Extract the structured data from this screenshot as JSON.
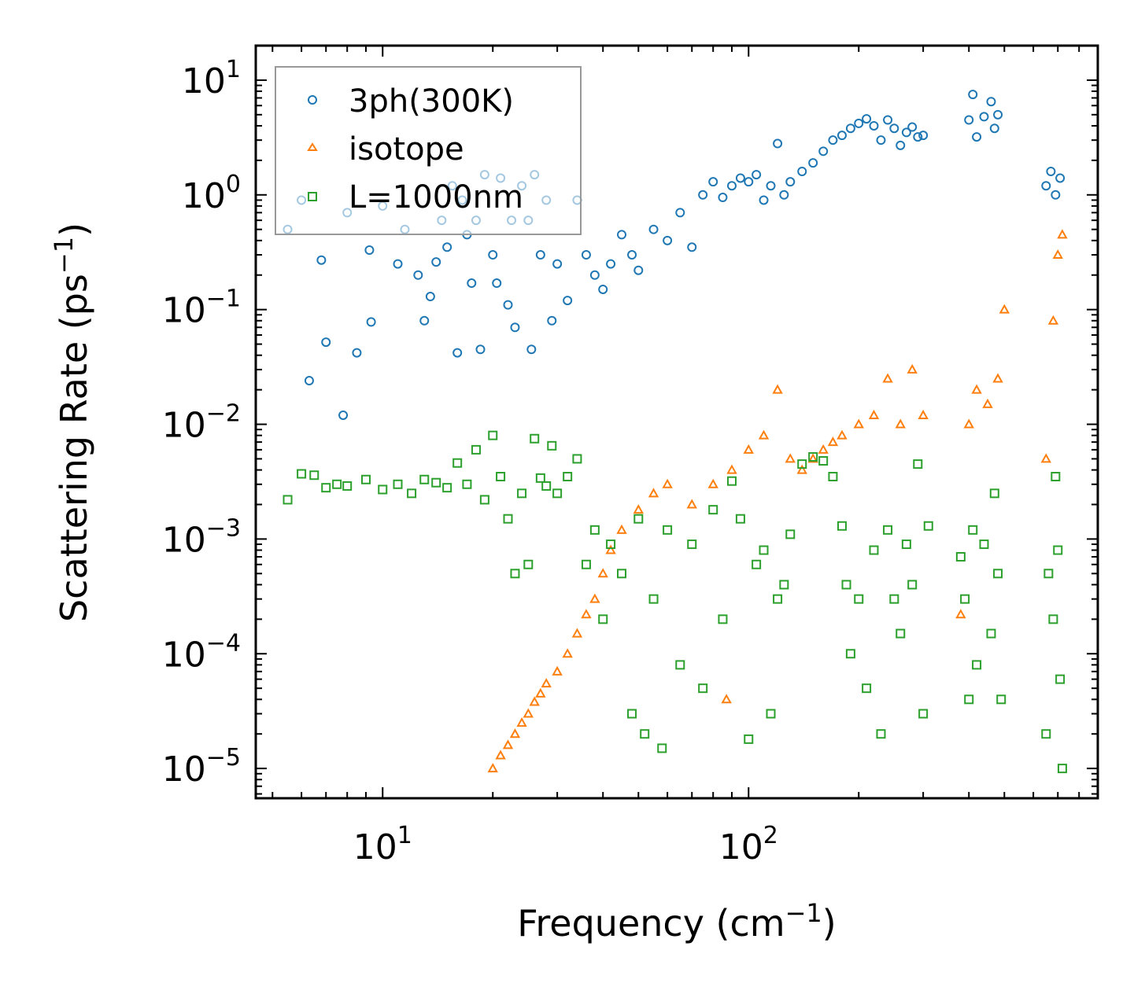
{
  "chart_data": {
    "type": "scatter",
    "xscale": "log",
    "yscale": "log",
    "xlim": [
      4.5,
      900
    ],
    "ylim": [
      5.5e-06,
      20
    ],
    "xlabel": "Frequency (cm",
    "xlabel_sup": "−1",
    "xlabel_end": ")",
    "ylabel": "Scattering Rate (ps",
    "ylabel_sup": "−1",
    "ylabel_end": ")",
    "x_ticks": [
      {
        "value": 10,
        "base": "10",
        "exp": "1"
      },
      {
        "value": 100,
        "base": "10",
        "exp": "2"
      }
    ],
    "y_ticks": [
      {
        "value": 10,
        "base": "10",
        "exp": "1"
      },
      {
        "value": 1,
        "base": "10",
        "exp": "0"
      },
      {
        "value": 0.1,
        "base": "10",
        "exp": "−1"
      },
      {
        "value": 0.01,
        "base": "10",
        "exp": "−2"
      },
      {
        "value": 0.001,
        "base": "10",
        "exp": "−3"
      },
      {
        "value": 0.0001,
        "base": "10",
        "exp": "−4"
      },
      {
        "value": 1e-05,
        "base": "10",
        "exp": "−5"
      }
    ],
    "legend_position": "top-left",
    "series": [
      {
        "name": "3ph(300K)",
        "marker": "circle",
        "color": "#1f77b4",
        "points": [
          [
            5.5,
            0.5
          ],
          [
            6,
            0.9
          ],
          [
            6.3,
            0.024
          ],
          [
            6.8,
            0.27
          ],
          [
            7,
            0.052
          ],
          [
            7.8,
            0.012
          ],
          [
            8,
            0.7
          ],
          [
            8.5,
            0.042
          ],
          [
            9.2,
            0.33
          ],
          [
            9.3,
            0.078
          ],
          [
            10,
            0.8
          ],
          [
            11,
            0.25
          ],
          [
            11.5,
            0.5
          ],
          [
            12.5,
            0.2
          ],
          [
            13,
            0.08
          ],
          [
            13.5,
            0.13
          ],
          [
            14,
            0.26
          ],
          [
            14.5,
            0.6
          ],
          [
            15,
            0.35
          ],
          [
            15.5,
            1.2
          ],
          [
            16,
            0.042
          ],
          [
            16.5,
            0.9
          ],
          [
            17,
            0.45
          ],
          [
            17.5,
            0.17
          ],
          [
            18,
            0.6
          ],
          [
            18.5,
            0.045
          ],
          [
            19,
            1.5
          ],
          [
            20,
            0.3
          ],
          [
            20.5,
            0.17
          ],
          [
            21,
            1.4
          ],
          [
            22,
            0.11
          ],
          [
            22.5,
            0.6
          ],
          [
            23,
            0.07
          ],
          [
            24,
            1.2
          ],
          [
            25,
            0.6
          ],
          [
            25.5,
            0.045
          ],
          [
            26,
            1.5
          ],
          [
            27,
            0.3
          ],
          [
            28,
            0.9
          ],
          [
            29,
            0.08
          ],
          [
            30,
            0.25
          ],
          [
            32,
            0.12
          ],
          [
            34,
            0.9
          ],
          [
            36,
            0.3
          ],
          [
            38,
            0.2
          ],
          [
            40,
            0.15
          ],
          [
            42,
            0.25
          ],
          [
            45,
            0.45
          ],
          [
            48,
            0.3
          ],
          [
            50,
            0.22
          ],
          [
            55,
            0.5
          ],
          [
            60,
            0.4
          ],
          [
            65,
            0.7
          ],
          [
            70,
            0.35
          ],
          [
            75,
            1.0
          ],
          [
            80,
            1.3
          ],
          [
            85,
            0.95
          ],
          [
            90,
            1.2
          ],
          [
            95,
            1.4
          ],
          [
            100,
            1.3
          ],
          [
            105,
            1.5
          ],
          [
            110,
            0.9
          ],
          [
            115,
            1.2
          ],
          [
            120,
            2.8
          ],
          [
            125,
            1.0
          ],
          [
            130,
            1.3
          ],
          [
            140,
            1.6
          ],
          [
            150,
            1.9
          ],
          [
            160,
            2.4
          ],
          [
            170,
            3.0
          ],
          [
            180,
            3.3
          ],
          [
            190,
            3.8
          ],
          [
            200,
            4.2
          ],
          [
            210,
            4.6
          ],
          [
            220,
            4.0
          ],
          [
            230,
            3.0
          ],
          [
            240,
            4.5
          ],
          [
            250,
            3.8
          ],
          [
            260,
            2.7
          ],
          [
            270,
            3.5
          ],
          [
            280,
            3.9
          ],
          [
            290,
            3.2
          ],
          [
            300,
            3.3
          ],
          [
            400,
            4.5
          ],
          [
            410,
            7.5
          ],
          [
            420,
            3.2
          ],
          [
            440,
            4.8
          ],
          [
            460,
            6.5
          ],
          [
            470,
            3.8
          ],
          [
            480,
            5.0
          ],
          [
            650,
            1.2
          ],
          [
            670,
            1.6
          ],
          [
            690,
            1.0
          ],
          [
            710,
            1.4
          ]
        ]
      },
      {
        "name": "isotope",
        "marker": "triangle",
        "color": "#ff7f0e",
        "points": [
          [
            20,
            1e-05
          ],
          [
            21,
            1.3e-05
          ],
          [
            22,
            1.6e-05
          ],
          [
            23,
            2e-05
          ],
          [
            24,
            2.5e-05
          ],
          [
            25,
            3e-05
          ],
          [
            26,
            3.8e-05
          ],
          [
            27,
            4.5e-05
          ],
          [
            28,
            5.5e-05
          ],
          [
            30,
            7e-05
          ],
          [
            32,
            0.0001
          ],
          [
            34,
            0.00015
          ],
          [
            36,
            0.00022
          ],
          [
            38,
            0.0003
          ],
          [
            40,
            0.0005
          ],
          [
            42,
            0.0008
          ],
          [
            45,
            0.0012
          ],
          [
            50,
            0.0018
          ],
          [
            55,
            0.0025
          ],
          [
            60,
            0.003
          ],
          [
            70,
            0.002
          ],
          [
            80,
            0.003
          ],
          [
            87,
            4e-05
          ],
          [
            90,
            0.004
          ],
          [
            100,
            0.006
          ],
          [
            110,
            0.008
          ],
          [
            120,
            0.02
          ],
          [
            130,
            0.005
          ],
          [
            140,
            0.004
          ],
          [
            150,
            0.005
          ],
          [
            160,
            0.006
          ],
          [
            170,
            0.007
          ],
          [
            180,
            0.008
          ],
          [
            200,
            0.01
          ],
          [
            220,
            0.012
          ],
          [
            240,
            0.025
          ],
          [
            260,
            0.01
          ],
          [
            280,
            0.03
          ],
          [
            300,
            0.012
          ],
          [
            380,
            0.00022
          ],
          [
            400,
            0.01
          ],
          [
            420,
            0.02
          ],
          [
            450,
            0.015
          ],
          [
            480,
            0.025
          ],
          [
            500,
            0.1
          ],
          [
            650,
            0.005
          ],
          [
            680,
            0.08
          ],
          [
            700,
            0.3
          ],
          [
            720,
            0.45
          ]
        ]
      },
      {
        "name": "L=1000nm",
        "marker": "square",
        "color": "#2ca02c",
        "points": [
          [
            5.5,
            0.0022
          ],
          [
            6,
            0.0037
          ],
          [
            6.5,
            0.0036
          ],
          [
            7,
            0.0028
          ],
          [
            7.5,
            0.003
          ],
          [
            8,
            0.0029
          ],
          [
            9,
            0.0033
          ],
          [
            10,
            0.0027
          ],
          [
            11,
            0.003
          ],
          [
            12,
            0.0025
          ],
          [
            13,
            0.0033
          ],
          [
            14,
            0.0031
          ],
          [
            15,
            0.0028
          ],
          [
            16,
            0.0046
          ],
          [
            17,
            0.003
          ],
          [
            18,
            0.006
          ],
          [
            19,
            0.0022
          ],
          [
            20,
            0.008
          ],
          [
            21,
            0.0035
          ],
          [
            22,
            0.0015
          ],
          [
            23,
            0.0005
          ],
          [
            24,
            0.0025
          ],
          [
            25,
            0.0006
          ],
          [
            26,
            0.0075
          ],
          [
            27,
            0.0034
          ],
          [
            28,
            0.0029
          ],
          [
            29,
            0.0065
          ],
          [
            30,
            0.0025
          ],
          [
            32,
            0.0035
          ],
          [
            34,
            0.005
          ],
          [
            36,
            0.0006
          ],
          [
            38,
            0.0012
          ],
          [
            40,
            0.0002
          ],
          [
            42,
            0.0009
          ],
          [
            45,
            0.0005
          ],
          [
            48,
            3e-05
          ],
          [
            50,
            0.0015
          ],
          [
            52,
            2e-05
          ],
          [
            55,
            0.0003
          ],
          [
            58,
            1.5e-05
          ],
          [
            60,
            0.0012
          ],
          [
            65,
            8e-05
          ],
          [
            70,
            0.0009
          ],
          [
            75,
            5e-05
          ],
          [
            80,
            0.0018
          ],
          [
            85,
            0.0002
          ],
          [
            90,
            0.0032
          ],
          [
            95,
            0.0015
          ],
          [
            100,
            1.8e-05
          ],
          [
            105,
            0.0006
          ],
          [
            110,
            0.0008
          ],
          [
            115,
            3e-05
          ],
          [
            120,
            0.0003
          ],
          [
            125,
            0.0004
          ],
          [
            130,
            0.0011
          ],
          [
            140,
            0.0045
          ],
          [
            150,
            0.0052
          ],
          [
            160,
            0.0048
          ],
          [
            170,
            0.0035
          ],
          [
            180,
            0.0013
          ],
          [
            185,
            0.0004
          ],
          [
            190,
            0.0001
          ],
          [
            200,
            0.0003
          ],
          [
            210,
            5e-05
          ],
          [
            220,
            0.0008
          ],
          [
            230,
            2e-05
          ],
          [
            240,
            0.0012
          ],
          [
            250,
            0.0003
          ],
          [
            260,
            0.00015
          ],
          [
            270,
            0.0009
          ],
          [
            280,
            0.0004
          ],
          [
            290,
            0.0045
          ],
          [
            300,
            3e-05
          ],
          [
            310,
            0.0013
          ],
          [
            380,
            0.0007
          ],
          [
            390,
            0.0003
          ],
          [
            400,
            4e-05
          ],
          [
            410,
            0.0012
          ],
          [
            420,
            8e-05
          ],
          [
            440,
            0.0009
          ],
          [
            460,
            0.00015
          ],
          [
            470,
            0.0025
          ],
          [
            480,
            0.0005
          ],
          [
            490,
            4e-05
          ],
          [
            650,
            2e-05
          ],
          [
            660,
            0.0005
          ],
          [
            680,
            0.0002
          ],
          [
            690,
            0.0035
          ],
          [
            700,
            0.0008
          ],
          [
            710,
            6e-05
          ],
          [
            720,
            1e-05
          ]
        ]
      }
    ]
  }
}
